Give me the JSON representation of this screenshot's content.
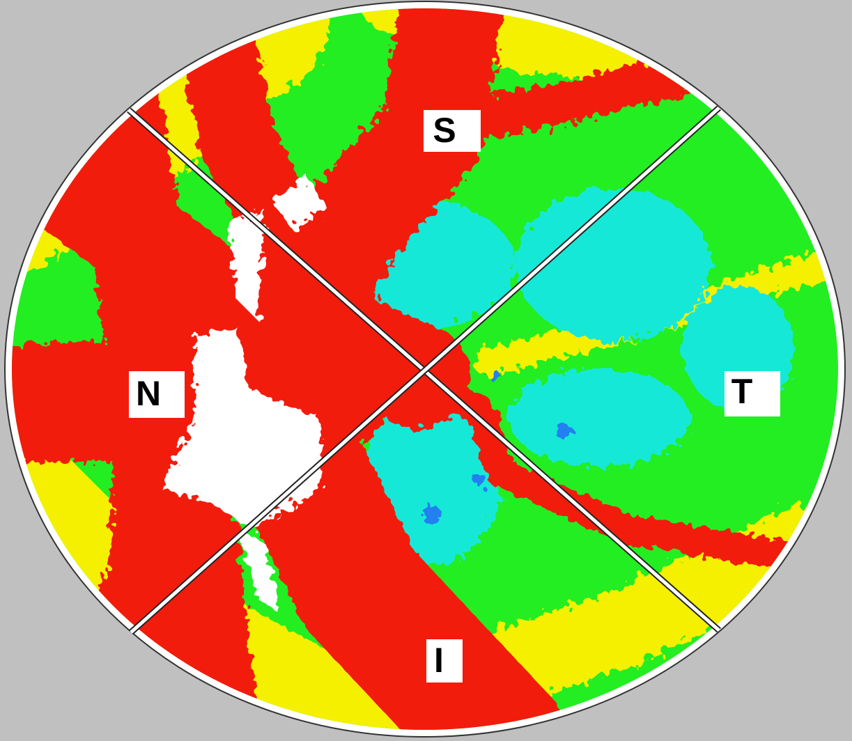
{
  "sectors": [
    {
      "label": "S"
    },
    {
      "label": "N"
    },
    {
      "label": "T"
    },
    {
      "label": "I"
    }
  ]
}
